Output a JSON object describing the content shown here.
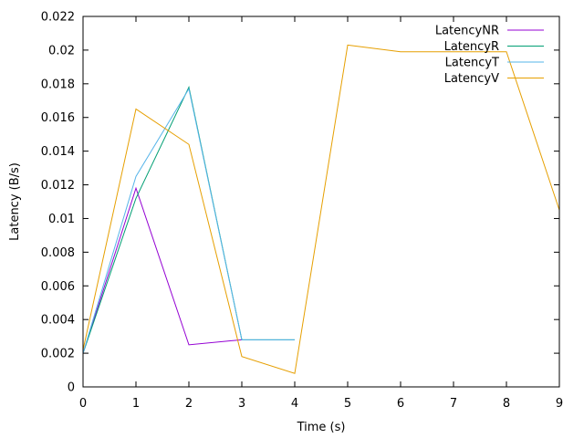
{
  "chart_data": {
    "type": "line",
    "xlabel": "Time (s)",
    "ylabel": "Latency (B/s)",
    "xlim": [
      0,
      9
    ],
    "ylim": [
      0,
      0.022
    ],
    "x_ticks": [
      "0",
      "1",
      "2",
      "3",
      "4",
      "5",
      "6",
      "7",
      "8",
      "9"
    ],
    "y_ticks": [
      "0",
      "0.002",
      "0.004",
      "0.006",
      "0.008",
      "0.01",
      "0.012",
      "0.014",
      "0.016",
      "0.018",
      "0.02",
      "0.022"
    ],
    "grid": false,
    "legend_position": "top-right",
    "series": [
      {
        "name": "LatencyNR",
        "color": "#9400d3",
        "x": [
          0,
          1,
          2,
          3
        ],
        "y": [
          0.002,
          0.0118,
          0.0025,
          0.0028
        ]
      },
      {
        "name": "LatencyR",
        "color": "#009e73",
        "x": [
          0,
          1,
          2,
          3,
          4
        ],
        "y": [
          0.002,
          0.0112,
          0.0178,
          0.0028,
          0.0028
        ]
      },
      {
        "name": "LatencyT",
        "color": "#56b4e9",
        "x": [
          0,
          1,
          2,
          3,
          4
        ],
        "y": [
          0.002,
          0.0125,
          0.0177,
          0.0028,
          0.0028
        ]
      },
      {
        "name": "LatencyV",
        "color": "#e69f00",
        "x": [
          0,
          1,
          2,
          3,
          4,
          5,
          6,
          7,
          8,
          9
        ],
        "y": [
          0.0022,
          0.0165,
          0.0144,
          0.0018,
          0.0008,
          0.0203,
          0.0199,
          0.0199,
          0.0199,
          0.0105
        ]
      }
    ]
  }
}
